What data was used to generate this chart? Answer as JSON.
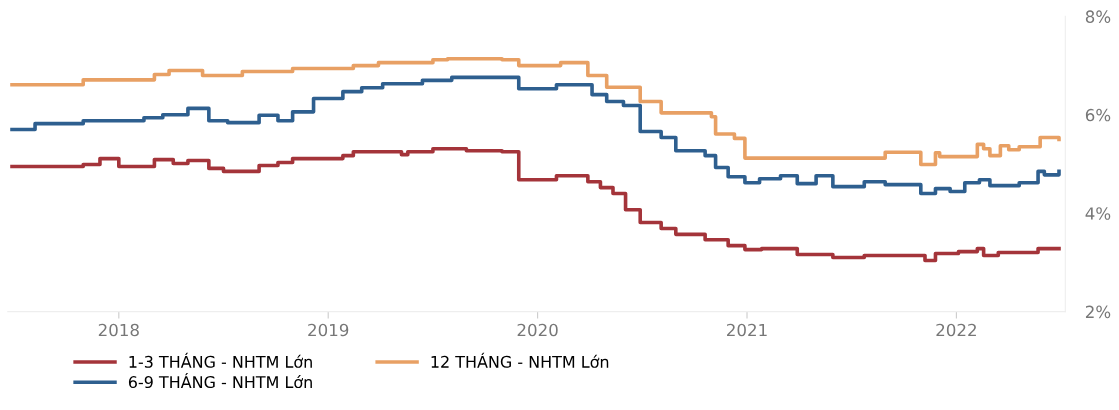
{
  "chart_data": {
    "type": "step",
    "xlim": [
      2017.47,
      2022.52
    ],
    "xticks": [
      2018,
      2019,
      2020,
      2021,
      2022
    ],
    "ylim": [
      2,
      8
    ],
    "yticks": [
      {
        "value": 2,
        "label": "2%"
      },
      {
        "value": 4,
        "label": "4%"
      },
      {
        "value": 6,
        "label": "6%"
      },
      {
        "value": 8,
        "label": "8%"
      }
    ],
    "grid": false,
    "legend": "bottom",
    "line_style": "solid",
    "marker": "none",
    "series": [
      {
        "name": "1-3 THÁNG - NHTM Lớn",
        "color": "#a4343a",
        "x": [
          2017.49,
          2017.83,
          2017.91,
          2018.0,
          2018.17,
          2018.26,
          2018.33,
          2018.43,
          2018.5,
          2018.67,
          2018.76,
          2018.83,
          2019.07,
          2019.12,
          2019.35,
          2019.38,
          2019.5,
          2019.66,
          2019.83,
          2019.91,
          2020.09,
          2020.24,
          2020.3,
          2020.36,
          2020.42,
          2020.49,
          2020.59,
          2020.66,
          2020.8,
          2020.91,
          2020.99,
          2021.07,
          2021.24,
          2021.41,
          2021.56,
          2021.85,
          2021.9,
          2022.01,
          2022.1,
          2022.13,
          2022.2,
          2022.39,
          2022.49
        ],
        "values": [
          4.95,
          4.99,
          5.11,
          4.95,
          5.09,
          5.01,
          5.07,
          4.91,
          4.85,
          4.97,
          5.03,
          5.11,
          5.17,
          5.25,
          5.19,
          5.25,
          5.31,
          5.27,
          5.25,
          4.68,
          4.76,
          4.64,
          4.52,
          4.4,
          4.07,
          3.81,
          3.69,
          3.57,
          3.46,
          3.34,
          3.26,
          3.28,
          3.16,
          3.1,
          3.14,
          3.04,
          3.18,
          3.22,
          3.28,
          3.14,
          3.2,
          3.28,
          3.28
        ]
      },
      {
        "name": "6-9 THÁNG - NHTM Lớn",
        "color": "#2e5f8f",
        "x": [
          2017.49,
          2017.6,
          2017.83,
          2018.12,
          2018.21,
          2018.33,
          2018.43,
          2018.52,
          2018.67,
          2018.76,
          2018.83,
          2018.93,
          2019.07,
          2019.16,
          2019.26,
          2019.45,
          2019.59,
          2019.9,
          2019.91,
          2020.09,
          2020.26,
          2020.33,
          2020.41,
          2020.49,
          2020.59,
          2020.66,
          2020.8,
          2020.85,
          2020.91,
          2020.99,
          2021.06,
          2021.16,
          2021.24,
          2021.33,
          2021.41,
          2021.56,
          2021.66,
          2021.83,
          2021.9,
          2021.97,
          2022.04,
          2022.11,
          2022.16,
          2022.3,
          2022.39,
          2022.42,
          2022.49
        ],
        "values": [
          5.7,
          5.82,
          5.88,
          5.94,
          6.0,
          6.13,
          5.88,
          5.84,
          5.99,
          5.88,
          6.06,
          6.33,
          6.47,
          6.55,
          6.63,
          6.7,
          6.76,
          6.76,
          6.53,
          6.61,
          6.41,
          6.27,
          6.19,
          5.66,
          5.54,
          5.27,
          5.17,
          4.93,
          4.74,
          4.62,
          4.7,
          4.76,
          4.6,
          4.76,
          4.54,
          4.64,
          4.58,
          4.4,
          4.5,
          4.44,
          4.62,
          4.68,
          4.56,
          4.62,
          4.85,
          4.78,
          4.85
        ]
      },
      {
        "name": "12 THÁNG - NHTM Lớn",
        "color": "#e8a064",
        "x": [
          2017.49,
          2017.83,
          2018.17,
          2018.24,
          2018.4,
          2018.59,
          2018.83,
          2019.12,
          2019.24,
          2019.5,
          2019.57,
          2019.83,
          2019.91,
          2020.11,
          2020.24,
          2020.33,
          2020.49,
          2020.59,
          2020.83,
          2020.85,
          2020.94,
          2020.99,
          2021.66,
          2021.83,
          2021.85,
          2021.9,
          2021.92,
          2022.1,
          2022.13,
          2022.16,
          2022.21,
          2022.25,
          2022.3,
          2022.4,
          2022.49
        ],
        "values": [
          6.61,
          6.71,
          6.82,
          6.9,
          6.8,
          6.88,
          6.94,
          7.0,
          7.06,
          7.12,
          7.14,
          7.12,
          7.0,
          7.06,
          6.8,
          6.56,
          6.27,
          6.04,
          5.96,
          5.61,
          5.52,
          5.12,
          5.24,
          4.99,
          4.99,
          5.23,
          5.15,
          5.4,
          5.31,
          5.17,
          5.37,
          5.29,
          5.35,
          5.54,
          5.5
        ]
      }
    ]
  }
}
